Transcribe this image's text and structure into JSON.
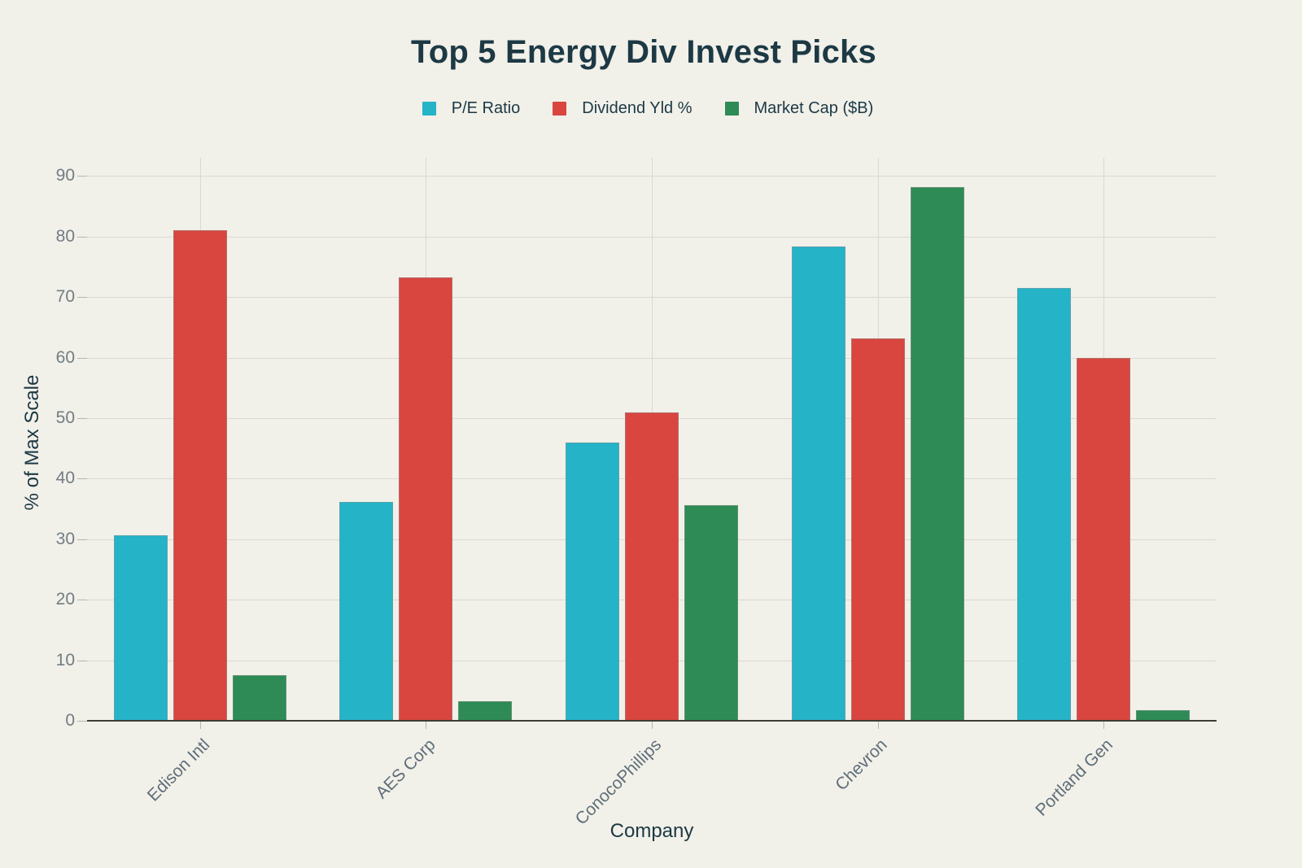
{
  "chart_data": {
    "type": "bar",
    "title": "Top 5 Energy Div Invest Picks",
    "xlabel": "Company",
    "ylabel": "% of Max Scale",
    "categories": [
      "Edison Intl",
      "AES Corp",
      "ConocoPhillips",
      "Chevron",
      "Portland Gen"
    ],
    "series": [
      {
        "name": "P/E Ratio",
        "color": "#25b3c8",
        "values": [
          30.7,
          36.1,
          45.9,
          78.4,
          71.5
        ]
      },
      {
        "name": "Dividend Yld %",
        "color": "#d8463f",
        "values": [
          81.0,
          73.3,
          50.9,
          63.2,
          60.0
        ]
      },
      {
        "name": "Market Cap ($B)",
        "color": "#2e8b55",
        "values": [
          7.5,
          3.2,
          35.6,
          88.1,
          1.8
        ]
      }
    ],
    "yticks": [
      0,
      10,
      20,
      30,
      40,
      50,
      60,
      70,
      80,
      90
    ],
    "ylim": [
      0,
      93
    ],
    "grid": true,
    "legend_position": "top-center"
  },
  "colors": {
    "background": "#f1f0e9",
    "title_text": "#1c3944",
    "axis_title_text": "#1c3944",
    "y_tick_text": "#727d82",
    "x_tick_text": "#5f6e78",
    "gridline": "#dbd9d0",
    "baseline": "#3c3c38",
    "series_pe_ratio": "#25b3c8",
    "series_dividend_yld": "#d8463f",
    "series_market_cap": "#2e8b55"
  }
}
